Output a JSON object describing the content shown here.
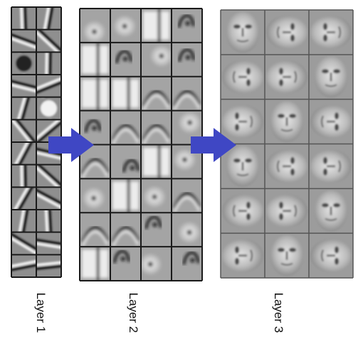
{
  "figure": {
    "layers": [
      {
        "label": "Layer 1",
        "rows": 12,
        "cols": 2
      },
      {
        "label": "Layer 2",
        "rows": 8,
        "cols": 4
      },
      {
        "label": "Layer 3",
        "rows": 6,
        "cols": 3
      }
    ],
    "arrows": [
      {
        "from": "Layer 1",
        "to": "Layer 2",
        "color": "#3f47c4"
      },
      {
        "from": "Layer 2",
        "to": "Layer 3",
        "color": "#3f47c4"
      }
    ],
    "colors": {
      "grid_line": "#1a1a1a",
      "layer3_grid_line": "#555555",
      "tile_base": "#9a9a9a"
    }
  }
}
